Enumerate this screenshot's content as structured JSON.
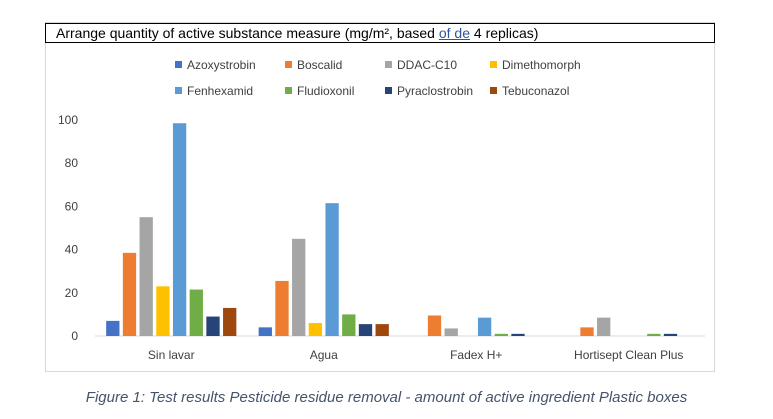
{
  "title_parts": [
    "Arrange quantity of active substance measure (mg/m², based ",
    "of  de",
    " 4 replicas)"
  ],
  "caption": "Figure 1: Test results Pesticide residue removal - amount of active ingredient Plastic boxes",
  "chart_data": {
    "type": "bar",
    "title": "Arrange quantity of active substance measure (mg/m², based of  de 4 replicas)",
    "categories": [
      "Sin lavar",
      "Agua",
      "Fadex H+",
      "Hortisept Clean Plus"
    ],
    "ylim": [
      0,
      100
    ],
    "yticks": [
      0,
      20,
      40,
      60,
      80,
      100
    ],
    "grid": false,
    "legend_position": "top",
    "series": [
      {
        "name": "Azoxystrobin",
        "color": "#4472c4",
        "values": [
          7,
          4,
          0,
          0
        ]
      },
      {
        "name": "Boscalid",
        "color": "#ed7d31",
        "values": [
          38.5,
          25.5,
          9.5,
          4
        ]
      },
      {
        "name": "DDAC-C10",
        "color": "#a5a5a5",
        "values": [
          55,
          45,
          3.5,
          8.5
        ]
      },
      {
        "name": "Dimethomorph",
        "color": "#ffc000",
        "values": [
          23,
          6,
          0,
          0
        ]
      },
      {
        "name": "Fenhexamid",
        "color": "#5b9bd5",
        "values": [
          98.5,
          61.5,
          8.5,
          0
        ]
      },
      {
        "name": "Fludioxonil",
        "color": "#70ad47",
        "values": [
          21.5,
          10,
          1,
          1
        ]
      },
      {
        "name": "Pyraclostrobin",
        "color": "#264478",
        "values": [
          9,
          5.5,
          1,
          1
        ]
      },
      {
        "name": "Tebuconazol",
        "color": "#9e480e",
        "values": [
          13,
          5.5,
          0,
          0
        ]
      }
    ]
  }
}
